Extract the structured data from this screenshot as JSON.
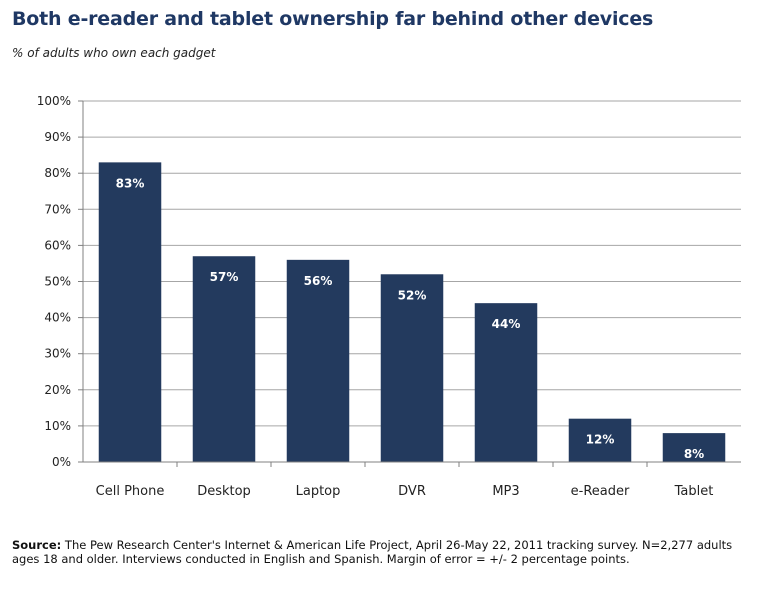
{
  "chart_data": {
    "type": "bar",
    "title": "Both e-reader and tablet ownership far behind other devices",
    "subtitle": "% of adults who own each gadget",
    "categories": [
      "Cell Phone",
      "Desktop",
      "Laptop",
      "DVR",
      "MP3",
      "e-Reader",
      "Tablet"
    ],
    "values": [
      83,
      57,
      56,
      52,
      44,
      12,
      8
    ],
    "data_labels": [
      "83%",
      "57%",
      "56%",
      "52%",
      "44%",
      "12%",
      "8%"
    ],
    "ylim": [
      0,
      100
    ],
    "yticks": [
      "0%",
      "10%",
      "20%",
      "30%",
      "40%",
      "50%",
      "60%",
      "70%",
      "80%",
      "90%",
      "100%"
    ],
    "xlabel": "",
    "ylabel": "",
    "grid": true,
    "legend": "none",
    "colors": {
      "bar": "#233a5e",
      "grid": "#a6a6a6",
      "title": "#1f3864"
    }
  },
  "source": {
    "label": "Source:",
    "text": " The Pew Research Center's Internet & American Life Project, April 26-May 22, 2011 tracking survey. N=2,277 adults ages 18 and older. Interviews conducted in English and Spanish. Margin of error = +/- 2 percentage points."
  }
}
